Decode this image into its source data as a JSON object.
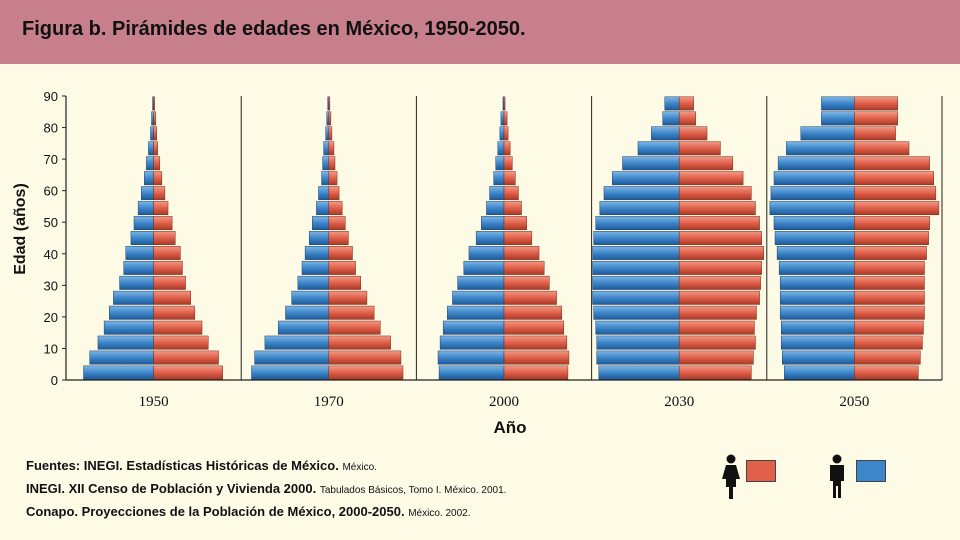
{
  "title": "Figura b. Pirámides de edades en México, 1950-2050.",
  "colors": {
    "female": "#e0604a",
    "male": "#3d86c9",
    "title_bg": "#c77f8c",
    "bg": "#fdfbe6"
  },
  "chart_data": {
    "type": "population-pyramid",
    "ylabel": "Edad (años)",
    "xlabel": "Año",
    "y_ticks": [
      0,
      10,
      20,
      30,
      40,
      50,
      60,
      70,
      80,
      90
    ],
    "age_groups": [
      "0-4",
      "5-9",
      "10-14",
      "15-19",
      "20-24",
      "25-29",
      "30-34",
      "35-39",
      "40-44",
      "45-49",
      "50-54",
      "55-59",
      "60-64",
      "65-69",
      "70-74",
      "75-79",
      "80-84",
      "85-89",
      "90+"
    ],
    "panels": [
      {
        "year": "1950",
        "male": [
          68,
          62,
          54,
          48,
          43,
          39,
          33,
          29,
          27,
          22,
          19,
          15,
          12,
          9,
          7,
          5,
          3,
          2,
          1
        ],
        "female": [
          67,
          63,
          53,
          47,
          40,
          36,
          31,
          28,
          26,
          21,
          18,
          14,
          11,
          8,
          6,
          4,
          3,
          2,
          1
        ]
      },
      {
        "year": "1970",
        "male": [
          75,
          72,
          62,
          49,
          42,
          36,
          30,
          26,
          23,
          19,
          16,
          12,
          10,
          7,
          6,
          5,
          3,
          2,
          1
        ],
        "female": [
          72,
          70,
          60,
          50,
          44,
          37,
          31,
          26,
          23,
          19,
          16,
          13,
          10,
          8,
          6,
          5,
          3,
          2,
          1
        ]
      },
      {
        "year": "2000",
        "male": [
          63,
          64,
          62,
          59,
          55,
          50,
          45,
          39,
          34,
          27,
          22,
          17,
          14,
          10,
          8,
          6,
          4,
          3,
          1
        ],
        "female": [
          62,
          63,
          61,
          58,
          56,
          51,
          44,
          39,
          34,
          27,
          22,
          17,
          14,
          11,
          8,
          6,
          4,
          3,
          1
        ]
      },
      {
        "year": "2030",
        "male": [
          78,
          80,
          80,
          81,
          83,
          84,
          84,
          84,
          84,
          83,
          81,
          77,
          73,
          65,
          55,
          40,
          27,
          16,
          14
        ],
        "female": [
          70,
          72,
          74,
          73,
          75,
          78,
          79,
          80,
          82,
          80,
          78,
          74,
          70,
          62,
          52,
          40,
          27,
          16,
          14
        ]
      },
      {
        "year": "2050",
        "male": [
          68,
          70,
          71,
          71,
          72,
          72,
          72,
          73,
          75,
          77,
          78,
          82,
          81,
          78,
          74,
          66,
          52,
          32,
          32
        ],
        "female": [
          62,
          64,
          66,
          67,
          68,
          68,
          68,
          68,
          70,
          72,
          73,
          82,
          79,
          77,
          73,
          53,
          40,
          42,
          42
        ]
      }
    ],
    "xmax": 85
  },
  "sources": {
    "line1_bold": "Fuentes: INEGI. Estadísticas Históricas de México.",
    "line1_small": "México.",
    "line2_bold": "INEGI. XII Censo de Población y Vivienda 2000.",
    "line2_small": "Tabulados Básicos, Tomo I. México. 2001.",
    "line3_bold": "Conapo. Proyecciones de la Población de México, 2000-2050.",
    "line3_small": "México. 2002."
  },
  "legend": {
    "female_icon": "female-person-icon",
    "male_icon": "male-person-icon"
  }
}
